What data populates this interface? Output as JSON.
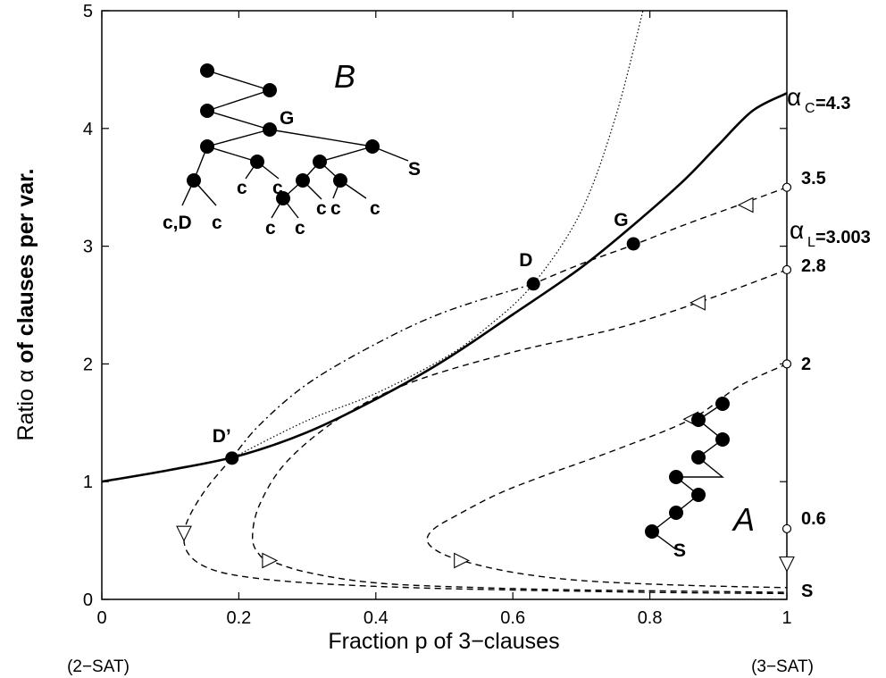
{
  "chart_data": {
    "type": "line",
    "xlabel": "Fraction p of 3−clauses",
    "ylabel_prefix": "Ratio α ",
    "ylabel_bold": "of clauses per var.",
    "xlim": [
      0,
      1
    ],
    "ylim": [
      0,
      5
    ],
    "x_ticks": [
      0,
      0.2,
      0.4,
      0.6,
      0.8,
      1
    ],
    "y_ticks": [
      0,
      1,
      2,
      3,
      4,
      5
    ],
    "x_end_labels": [
      "(2−SAT)",
      "(3−SAT)"
    ],
    "grid": false,
    "legend": "none",
    "series": [
      {
        "style": "solid-bold",
        "x": [
          0,
          0.1,
          0.2,
          0.3,
          0.4,
          0.5,
          0.6,
          0.7,
          0.78,
          0.85,
          0.9,
          0.95,
          1
        ],
        "y": [
          1,
          1.1,
          1.22,
          1.42,
          1.7,
          2.03,
          2.42,
          2.82,
          3.2,
          3.56,
          3.86,
          4.15,
          4.3
        ]
      },
      {
        "style": "dotted",
        "x": [
          0.19,
          0.3,
          0.4,
          0.5,
          0.56,
          0.63,
          0.7,
          0.75,
          0.79
        ],
        "y": [
          1.2,
          1.52,
          1.75,
          2.05,
          2.3,
          2.68,
          3.3,
          4.1,
          5
        ]
      },
      {
        "style": "dashed",
        "x": [
          1,
          0.93,
          0.85,
          0.78,
          0.7,
          0.63
        ],
        "y": [
          3.5,
          3.35,
          3.18,
          3.02,
          2.85,
          2.68
        ]
      },
      {
        "style": "dashdot",
        "x": [
          0.63,
          0.5,
          0.4,
          0.3,
          0.23,
          0.19
        ],
        "y": [
          2.68,
          2.44,
          2.17,
          1.83,
          1.48,
          1.2
        ]
      },
      {
        "style": "dashed",
        "x": [
          0.19,
          0.155,
          0.13,
          0.12,
          0.125,
          0.15,
          0.2,
          0.3,
          0.45,
          0.6,
          0.8,
          1
        ],
        "y": [
          1.2,
          0.96,
          0.73,
          0.56,
          0.4,
          0.28,
          0.2,
          0.14,
          0.1,
          0.08,
          0.06,
          0.05
        ]
      },
      {
        "style": "dashed",
        "x": [
          1,
          0.87,
          0.75,
          0.6,
          0.45,
          0.35,
          0.27,
          0.23,
          0.22,
          0.23,
          0.245,
          0.3,
          0.4,
          0.55,
          0.7,
          0.85,
          1
        ],
        "y": [
          2.8,
          2.52,
          2.3,
          2.1,
          1.84,
          1.55,
          1.17,
          0.8,
          0.52,
          0.38,
          0.33,
          0.23,
          0.14,
          0.1,
          0.08,
          0.07,
          0.06
        ]
      },
      {
        "style": "dashed",
        "x": [
          1,
          0.93,
          0.86,
          0.75,
          0.65,
          0.58,
          0.52,
          0.485,
          0.475,
          0.49,
          0.525,
          0.6,
          0.7,
          0.85,
          1
        ],
        "y": [
          2,
          1.81,
          1.53,
          1.27,
          1.06,
          0.9,
          0.72,
          0.6,
          0.5,
          0.41,
          0.33,
          0.23,
          0.16,
          0.12,
          0.1
        ]
      }
    ],
    "points": [
      {
        "label": "D’",
        "x": 0.19,
        "y": 1.2
      },
      {
        "label": "D",
        "x": 0.63,
        "y": 2.68
      },
      {
        "label": "G",
        "x": 0.776,
        "y": 3.02
      }
    ],
    "start_markers": [
      {
        "x": 1,
        "y": 3.5
      },
      {
        "x": 1,
        "y": 2.8
      },
      {
        "x": 1,
        "y": 2.0
      },
      {
        "x": 1,
        "y": 0.6
      }
    ],
    "arrow_markers": [
      {
        "x": 0.94,
        "y": 3.35,
        "dir": "left"
      },
      {
        "x": 0.87,
        "y": 2.52,
        "dir": "left"
      },
      {
        "x": 0.86,
        "y": 1.53,
        "dir": "left"
      },
      {
        "x": 0.12,
        "y": 0.56,
        "dir": "down"
      },
      {
        "x": 0.245,
        "y": 0.33,
        "dir": "right"
      },
      {
        "x": 0.525,
        "y": 0.33,
        "dir": "right"
      },
      {
        "x": 1,
        "y": 0.3,
        "dir": "down"
      }
    ],
    "right_labels": {
      "alpha_c_sym": "α",
      "alpha_c_sub": "C",
      "alpha_c_val": "=4.3",
      "alpha_l_sym": "α",
      "alpha_l_sub": "L",
      "alpha_l_val": "=3.003",
      "v35": "3.5",
      "v28": "2.8",
      "v2": "2",
      "v06": "0.6",
      "vS": "S"
    },
    "region_labels": {
      "B": "B",
      "A": "A"
    },
    "tree_labels": {
      "G": "G",
      "S": "S",
      "c1": "c,D",
      "c2": "c",
      "c3": "c",
      "c4": "c",
      "c5": "c",
      "c6": "c",
      "c7": "c",
      "c8": "c",
      "c9": "c",
      "c10": "c",
      "A_S": "S"
    }
  }
}
